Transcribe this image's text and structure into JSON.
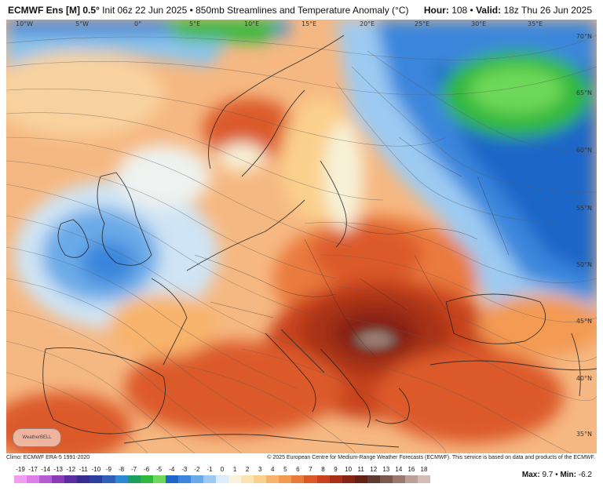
{
  "header": {
    "model": "ECMWF Ens [M] 0.5°",
    "subtitle": "Init 06z 22 Jun 2025 • 850mb Streamlines and Temperature Anomaly (°C)",
    "hour_label": "Hour:",
    "hour_value": "108",
    "valid_label": "Valid:",
    "valid_value": "18z Thu 26 Jun 2025"
  },
  "map": {
    "longitude_labels": [
      "10°W",
      "5°W",
      "0°",
      "5°E",
      "10°E",
      "15°E",
      "20°E",
      "25°E",
      "30°E",
      "35°E"
    ],
    "latitude_labels": [
      "70°N",
      "65°N",
      "60°N",
      "55°N",
      "50°N",
      "45°N",
      "40°N",
      "35°N"
    ],
    "logo_text": "WeatherBELL"
  },
  "footer": {
    "climo": "Climo: ECMWF ERA-5 1991-2020",
    "copyright": "© 2025 European Centre for Medium-Range Weather Forecasts (ECMWF). This service is based on data and products of the ECMWF."
  },
  "scale": {
    "labels": [
      "-19",
      "-17",
      "-14",
      "-13",
      "-12",
      "-11",
      "-10",
      "-9",
      "-8",
      "-7",
      "-6",
      "-5",
      "-4",
      "-3",
      "-2",
      "-1",
      "0",
      "1",
      "2",
      "3",
      "4",
      "5",
      "6",
      "7",
      "8",
      "9",
      "10",
      "11",
      "12",
      "13",
      "14",
      "16",
      "18"
    ],
    "colors": [
      "#f29ef0",
      "#e07ee6",
      "#b65cd2",
      "#8a3cb8",
      "#5a2ea0",
      "#3a2c8e",
      "#2d3f9e",
      "#2f5fb8",
      "#2e88d2",
      "#1aa05a",
      "#30b83c",
      "#6ed85a",
      "#1e66c8",
      "#3a86dc",
      "#6aaae8",
      "#9ccaf2",
      "#dcecf8",
      "#f7f2d8",
      "#fbe4b0",
      "#fbd08c",
      "#f8b46c",
      "#f39a52",
      "#ea7a3c",
      "#dc5a2a",
      "#c8421e",
      "#a83018",
      "#862414",
      "#642012",
      "#5e3a30",
      "#7a5a50",
      "#9a7a70",
      "#bba098",
      "#d4bcb4"
    ],
    "max_label": "Max:",
    "max_value": "9.7",
    "min_label": "Min:",
    "min_value": "-6.2"
  }
}
